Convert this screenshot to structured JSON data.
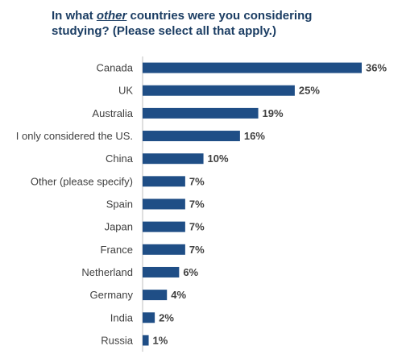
{
  "title": {
    "line1_pre": "In what ",
    "line1_em": "other",
    "line1_post": " countries were you considering",
    "line2": "studying? (Please select all that apply.)"
  },
  "colors": {
    "bar": "#1f4e86",
    "axis": "#bfbfbf",
    "title": "#1b3d63",
    "text": "#404040"
  },
  "chart_data": {
    "type": "bar",
    "orientation": "horizontal",
    "categories": [
      "Canada",
      "UK",
      "Australia",
      "I only considered the US.",
      "China",
      "Other (please specify)",
      "Spain",
      "Japan",
      "France",
      "Netherland",
      "Germany",
      "India",
      "Russia"
    ],
    "values": [
      36,
      25,
      19,
      16,
      10,
      7,
      7,
      7,
      7,
      6,
      4,
      2,
      1
    ],
    "value_labels": [
      "36%",
      "25%",
      "19%",
      "16%",
      "10%",
      "7%",
      "7%",
      "7%",
      "7%",
      "6%",
      "4%",
      "2%",
      "1%"
    ],
    "xlim": [
      0,
      36
    ],
    "grid": false,
    "legend": "none"
  }
}
